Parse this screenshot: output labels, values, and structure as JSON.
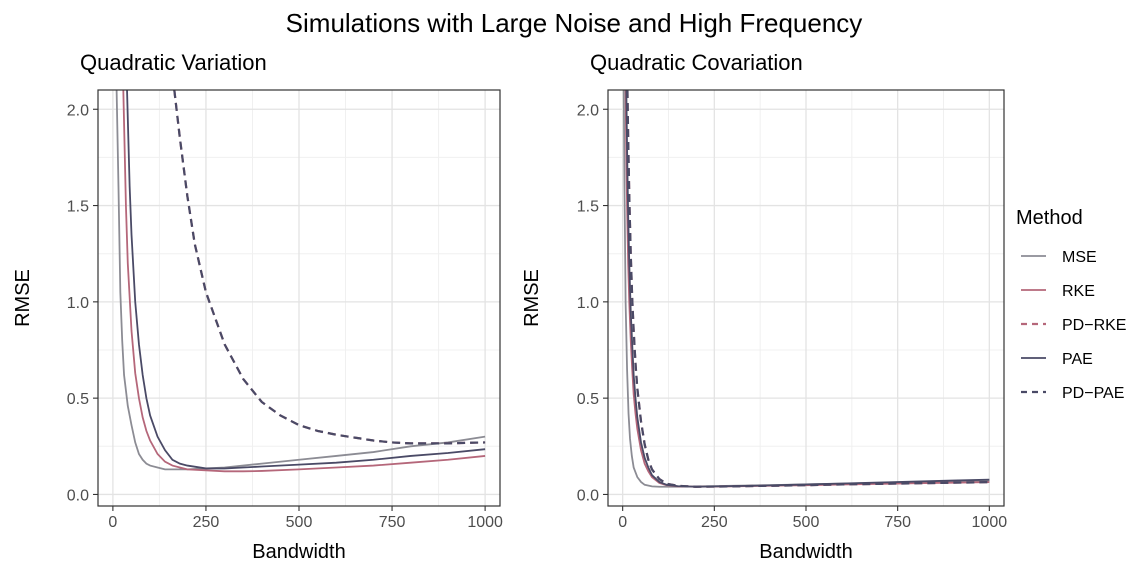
{
  "title": "Simulations with Large Noise and High Frequency",
  "legend": {
    "title": "Method",
    "items": [
      {
        "label": "MSE",
        "color": "#8c8c94",
        "dash": false
      },
      {
        "label": "RKE",
        "color": "#b5677a",
        "dash": false
      },
      {
        "label": "PD−RKE",
        "color": "#b5677a",
        "dash": true
      },
      {
        "label": "PAE",
        "color": "#4a4a66",
        "dash": false
      },
      {
        "label": "PD−PAE",
        "color": "#4a4a66",
        "dash": true
      }
    ]
  },
  "chart_data": [
    {
      "type": "line",
      "title": "Quadratic Variation",
      "xlabel": "Bandwidth",
      "ylabel": "RMSE",
      "xlim": [
        -40,
        1040
      ],
      "ylim": [
        -0.06,
        2.1
      ],
      "xticks": [
        0,
        250,
        500,
        750,
        1000
      ],
      "yticks": [
        0.0,
        0.5,
        1.0,
        1.5,
        2.0
      ],
      "grid": true,
      "series": [
        {
          "name": "MSE",
          "x": [
            10,
            15,
            20,
            25,
            30,
            40,
            50,
            60,
            70,
            80,
            90,
            100,
            120,
            140,
            160,
            180,
            200,
            250,
            300,
            400,
            500,
            600,
            700,
            800,
            900,
            1000
          ],
          "y": [
            2.1,
            1.6,
            1.05,
            0.8,
            0.62,
            0.46,
            0.36,
            0.27,
            0.21,
            0.18,
            0.16,
            0.15,
            0.14,
            0.13,
            0.13,
            0.13,
            0.13,
            0.135,
            0.14,
            0.16,
            0.18,
            0.2,
            0.22,
            0.25,
            0.27,
            0.3
          ]
        },
        {
          "name": "RKE",
          "x": [
            28,
            35,
            40,
            50,
            60,
            70,
            80,
            90,
            100,
            120,
            140,
            160,
            180,
            200,
            250,
            300,
            350,
            400,
            500,
            600,
            700,
            800,
            900,
            1000
          ],
          "y": [
            2.1,
            1.5,
            1.2,
            0.85,
            0.63,
            0.5,
            0.4,
            0.33,
            0.28,
            0.21,
            0.17,
            0.15,
            0.14,
            0.13,
            0.125,
            0.12,
            0.12,
            0.122,
            0.13,
            0.14,
            0.15,
            0.165,
            0.18,
            0.2
          ]
        },
        {
          "name": "PD−RKE",
          "x": [
            165,
            180,
            200,
            220,
            250,
            300,
            350,
            400,
            450,
            500,
            550,
            600,
            650,
            700,
            750,
            800,
            850,
            900,
            950,
            1000
          ],
          "y": [
            2.1,
            1.85,
            1.55,
            1.3,
            1.05,
            0.78,
            0.6,
            0.48,
            0.41,
            0.36,
            0.33,
            0.31,
            0.295,
            0.28,
            0.27,
            0.265,
            0.265,
            0.265,
            0.268,
            0.27
          ]
        },
        {
          "name": "PAE",
          "x": [
            38,
            45,
            50,
            60,
            70,
            80,
            90,
            100,
            120,
            140,
            160,
            180,
            200,
            250,
            300,
            350,
            400,
            500,
            600,
            700,
            800,
            900,
            1000
          ],
          "y": [
            2.1,
            1.6,
            1.35,
            1.0,
            0.78,
            0.62,
            0.5,
            0.41,
            0.3,
            0.23,
            0.18,
            0.16,
            0.15,
            0.135,
            0.135,
            0.14,
            0.145,
            0.155,
            0.165,
            0.18,
            0.2,
            0.215,
            0.235
          ]
        },
        {
          "name": "PD−PAE",
          "x": [
            165,
            180,
            200,
            220,
            250,
            300,
            350,
            400,
            450,
            500,
            550,
            600,
            650,
            700,
            750,
            800,
            850,
            900,
            950,
            1000
          ],
          "y": [
            2.1,
            1.85,
            1.55,
            1.3,
            1.05,
            0.78,
            0.6,
            0.48,
            0.41,
            0.36,
            0.33,
            0.31,
            0.295,
            0.28,
            0.27,
            0.265,
            0.265,
            0.265,
            0.268,
            0.27
          ]
        }
      ]
    },
    {
      "type": "line",
      "title": "Quadratic Covariation",
      "xlabel": "Bandwidth",
      "ylabel": "RMSE",
      "xlim": [
        -40,
        1040
      ],
      "ylim": [
        -0.06,
        2.1
      ],
      "xticks": [
        0,
        250,
        500,
        750,
        1000
      ],
      "yticks": [
        0.0,
        0.5,
        1.0,
        1.5,
        2.0
      ],
      "grid": true,
      "series": [
        {
          "name": "MSE",
          "x": [
            3,
            5,
            8,
            12,
            16,
            20,
            25,
            30,
            40,
            50,
            60,
            80,
            100,
            150,
            200,
            300,
            400,
            500,
            600,
            700,
            800,
            900,
            1000
          ],
          "y": [
            2.1,
            1.6,
            1.0,
            0.65,
            0.42,
            0.29,
            0.2,
            0.14,
            0.09,
            0.065,
            0.05,
            0.042,
            0.04,
            0.04,
            0.042,
            0.045,
            0.048,
            0.052,
            0.056,
            0.06,
            0.064,
            0.068,
            0.072
          ]
        },
        {
          "name": "RKE",
          "x": [
            8,
            10,
            12,
            15,
            18,
            22,
            26,
            30,
            35,
            40,
            50,
            60,
            70,
            80,
            100,
            120,
            150,
            200,
            300,
            400,
            500,
            600,
            700,
            800,
            900,
            1000
          ],
          "y": [
            2.1,
            1.75,
            1.5,
            1.2,
            1.0,
            0.8,
            0.65,
            0.52,
            0.42,
            0.34,
            0.23,
            0.16,
            0.12,
            0.09,
            0.06,
            0.048,
            0.042,
            0.04,
            0.042,
            0.045,
            0.048,
            0.052,
            0.055,
            0.058,
            0.061,
            0.064
          ]
        },
        {
          "name": "PD−RKE",
          "x": [
            13,
            15,
            18,
            22,
            26,
            30,
            35,
            40,
            50,
            60,
            70,
            80,
            100,
            120,
            150,
            200,
            300,
            400,
            500,
            600,
            700,
            800,
            900,
            1000
          ],
          "y": [
            2.1,
            1.85,
            1.55,
            1.25,
            1.02,
            0.85,
            0.68,
            0.55,
            0.38,
            0.26,
            0.18,
            0.13,
            0.08,
            0.055,
            0.045,
            0.04,
            0.042,
            0.045,
            0.048,
            0.052,
            0.055,
            0.058,
            0.061,
            0.064
          ]
        },
        {
          "name": "PAE",
          "x": [
            10,
            12,
            15,
            18,
            22,
            26,
            30,
            35,
            40,
            50,
            60,
            70,
            80,
            100,
            120,
            150,
            200,
            300,
            400,
            500,
            600,
            700,
            800,
            900,
            1000
          ],
          "y": [
            2.1,
            1.8,
            1.45,
            1.2,
            0.95,
            0.78,
            0.62,
            0.5,
            0.4,
            0.27,
            0.19,
            0.14,
            0.1,
            0.065,
            0.05,
            0.043,
            0.04,
            0.043,
            0.047,
            0.052,
            0.057,
            0.062,
            0.067,
            0.072,
            0.077
          ]
        },
        {
          "name": "PD−PAE",
          "x": [
            13,
            15,
            18,
            22,
            26,
            30,
            35,
            40,
            50,
            60,
            70,
            80,
            100,
            120,
            150,
            200,
            300,
            400,
            500,
            600,
            700,
            800,
            900,
            1000
          ],
          "y": [
            2.1,
            1.85,
            1.55,
            1.25,
            1.02,
            0.85,
            0.68,
            0.55,
            0.38,
            0.26,
            0.18,
            0.13,
            0.08,
            0.055,
            0.045,
            0.04,
            0.042,
            0.045,
            0.048,
            0.052,
            0.055,
            0.058,
            0.061,
            0.064
          ]
        }
      ]
    }
  ]
}
